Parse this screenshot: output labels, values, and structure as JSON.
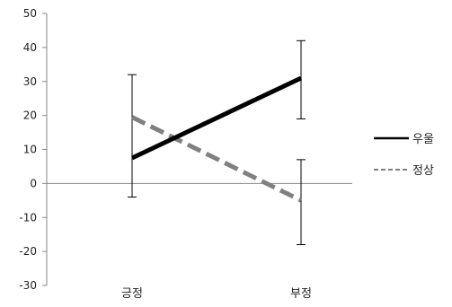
{
  "chart_data": {
    "type": "line",
    "categories": [
      "긍정",
      "부정"
    ],
    "ylim": [
      -30,
      50
    ],
    "yticks": [
      50,
      40,
      30,
      20,
      10,
      0,
      -10,
      -20,
      -30
    ],
    "grid": false,
    "legend_placement": "right",
    "series": [
      {
        "name": "우울",
        "values": [
          7.5,
          31
        ],
        "error_upper": [
          32,
          42
        ],
        "error_lower": [
          -4,
          19
        ],
        "color": "#000000",
        "style": "solid"
      },
      {
        "name": "정상",
        "values": [
          19.5,
          -5
        ],
        "error_upper": [
          null,
          7
        ],
        "error_lower": [
          null,
          -18
        ],
        "color": "#808080",
        "style": "dashed"
      }
    ]
  }
}
